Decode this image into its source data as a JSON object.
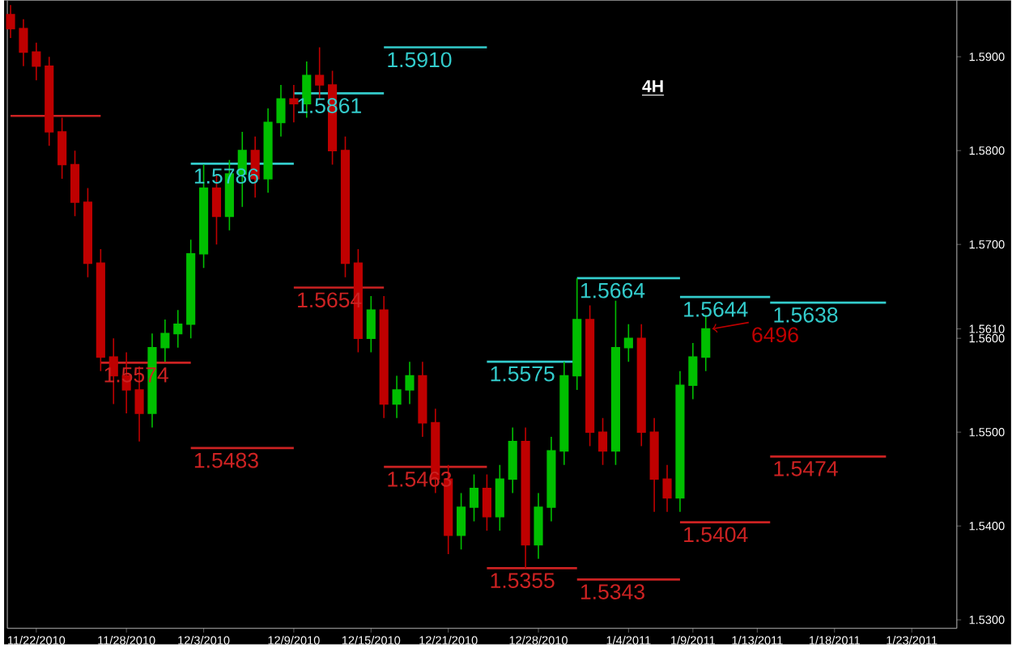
{
  "chart_data": {
    "type": "candlestick",
    "title": "4H",
    "categories": [
      null,
      null,
      "11/22/2010",
      null,
      null,
      null,
      null,
      null,
      null,
      "11/28/2010",
      null,
      null,
      null,
      null,
      null,
      "12/3/2010",
      null,
      null,
      null,
      null,
      null,
      null,
      "12/9/2010",
      null,
      null,
      null,
      null,
      null,
      "12/15/2010",
      null,
      null,
      null,
      null,
      null,
      "12/21/2010",
      null,
      null,
      null,
      null,
      null,
      null,
      "12/28/2010",
      null,
      null,
      null,
      null,
      null,
      null,
      "1/4/2011",
      null,
      null,
      null,
      null,
      "1/9/2011",
      null,
      null,
      null,
      null,
      "1/13/2011",
      null,
      null,
      null,
      null,
      null,
      "1/18/2011",
      null,
      null,
      null,
      null,
      null,
      "1/23/2011",
      null,
      null,
      null
    ],
    "ohlc": [
      [
        1.5945,
        1.5955,
        1.592,
        1.593
      ],
      [
        1.593,
        1.594,
        1.589,
        1.5905
      ],
      [
        1.5905,
        1.5915,
        1.5875,
        1.589
      ],
      [
        1.589,
        1.59,
        1.5805,
        1.582
      ],
      [
        1.582,
        1.5835,
        1.577,
        1.5785
      ],
      [
        1.5785,
        1.58,
        1.573,
        1.5745
      ],
      [
        1.5745,
        1.576,
        1.5665,
        1.568
      ],
      [
        1.568,
        1.5695,
        1.5565,
        1.558
      ],
      [
        1.558,
        1.56,
        1.553,
        1.556
      ],
      [
        1.556,
        1.5585,
        1.552,
        1.5545
      ],
      [
        1.5545,
        1.557,
        1.549,
        1.552
      ],
      [
        1.552,
        1.5605,
        1.5505,
        1.559
      ],
      [
        1.559,
        1.562,
        1.5575,
        1.5605
      ],
      [
        1.5605,
        1.563,
        1.559,
        1.5615
      ],
      [
        1.5615,
        1.5705,
        1.56,
        1.569
      ],
      [
        1.569,
        1.5785,
        1.5675,
        1.576
      ],
      [
        1.576,
        1.5775,
        1.57,
        1.573
      ],
      [
        1.573,
        1.579,
        1.5715,
        1.5775
      ],
      [
        1.5775,
        1.582,
        1.574,
        1.58
      ],
      [
        1.58,
        1.5815,
        1.575,
        1.577
      ],
      [
        1.577,
        1.5845,
        1.5755,
        1.583
      ],
      [
        1.583,
        1.587,
        1.5815,
        1.5855
      ],
      [
        1.5855,
        1.587,
        1.583,
        1.585
      ],
      [
        1.585,
        1.5895,
        1.5835,
        1.588
      ],
      [
        1.588,
        1.591,
        1.5855,
        1.587
      ],
      [
        1.587,
        1.5885,
        1.5785,
        1.58
      ],
      [
        1.58,
        1.5815,
        1.5665,
        1.568
      ],
      [
        1.568,
        1.5695,
        1.5585,
        1.56
      ],
      [
        1.56,
        1.5645,
        1.5585,
        1.563
      ],
      [
        1.563,
        1.5645,
        1.5515,
        1.553
      ],
      [
        1.553,
        1.556,
        1.5515,
        1.5545
      ],
      [
        1.5545,
        1.5575,
        1.553,
        1.556
      ],
      [
        1.556,
        1.5575,
        1.5495,
        1.551
      ],
      [
        1.551,
        1.5525,
        1.5435,
        1.545
      ],
      [
        1.545,
        1.5465,
        1.537,
        1.539
      ],
      [
        1.539,
        1.5435,
        1.5375,
        1.542
      ],
      [
        1.542,
        1.5455,
        1.5405,
        1.544
      ],
      [
        1.544,
        1.5455,
        1.5395,
        1.541
      ],
      [
        1.541,
        1.5465,
        1.5395,
        1.545
      ],
      [
        1.545,
        1.5505,
        1.5435,
        1.549
      ],
      [
        1.549,
        1.5505,
        1.5355,
        1.538
      ],
      [
        1.538,
        1.5435,
        1.5365,
        1.542
      ],
      [
        1.542,
        1.5495,
        1.5405,
        1.548
      ],
      [
        1.548,
        1.5575,
        1.5465,
        1.556
      ],
      [
        1.556,
        1.5664,
        1.5545,
        1.562
      ],
      [
        1.562,
        1.5635,
        1.5485,
        1.55
      ],
      [
        1.55,
        1.5515,
        1.5465,
        1.548
      ],
      [
        1.548,
        1.564,
        1.5465,
        1.559
      ],
      [
        1.559,
        1.5615,
        1.5575,
        1.56
      ],
      [
        1.56,
        1.5615,
        1.5485,
        1.55
      ],
      [
        1.55,
        1.5515,
        1.5415,
        1.545
      ],
      [
        1.545,
        1.5465,
        1.5415,
        1.543
      ],
      [
        1.543,
        1.5565,
        1.5415,
        1.555
      ],
      [
        1.555,
        1.5595,
        1.5535,
        1.558
      ],
      [
        1.558,
        1.5625,
        1.5565,
        1.561
      ],
      null,
      null,
      null,
      null,
      null,
      null,
      null,
      null,
      null,
      null,
      null,
      null,
      null,
      null,
      null,
      null,
      null,
      null,
      null
    ],
    "series": [
      {
        "type": "line",
        "color": "#cc2222",
        "values": [
          1.5837,
          1.5837,
          1.5837,
          1.5837,
          1.5837,
          1.5837,
          1.5837,
          1.5837,
          null,
          null,
          null,
          null,
          null,
          null,
          null,
          null,
          null,
          null,
          null,
          null,
          null,
          null,
          null,
          null,
          null,
          null,
          null,
          null,
          null,
          null,
          null,
          null,
          null,
          null,
          null,
          null,
          null,
          null,
          null,
          null,
          null,
          null,
          null,
          null,
          null,
          null,
          null,
          null,
          null,
          null,
          null,
          null,
          null,
          null,
          null,
          null,
          null,
          null,
          null,
          null,
          null,
          null,
          null,
          null,
          null,
          null,
          null,
          null,
          null,
          null,
          null,
          null,
          null,
          null
        ]
      },
      {
        "type": "line",
        "color": "#33cccc",
        "values": [
          null,
          null,
          null,
          null,
          null,
          null,
          null,
          null,
          null,
          null,
          null,
          null,
          null,
          null,
          1.5786,
          1.5786,
          1.5786,
          1.5786,
          1.5786,
          1.5786,
          1.5786,
          1.5786,
          1.5786,
          null,
          null,
          null,
          null,
          null,
          null,
          null,
          null,
          null,
          null,
          null,
          null,
          null,
          null,
          null,
          null,
          null,
          null,
          null,
          null,
          null,
          null,
          null,
          null,
          null,
          null,
          null,
          null,
          null,
          null,
          null,
          null,
          null,
          null,
          null,
          null,
          null,
          null,
          null,
          null,
          null,
          null,
          null,
          null,
          null,
          null,
          null,
          null,
          null,
          null,
          null
        ]
      },
      {
        "type": "line",
        "color": "#33cccc",
        "values": [
          null,
          null,
          null,
          null,
          null,
          null,
          null,
          null,
          null,
          null,
          null,
          null,
          null,
          null,
          null,
          null,
          null,
          null,
          null,
          null,
          null,
          null,
          1.5861,
          1.5861,
          1.5861,
          1.5861,
          1.5861,
          1.5861,
          1.5861,
          1.5861,
          null,
          null,
          null,
          null,
          null,
          null,
          null,
          null,
          null,
          null,
          null,
          null,
          null,
          null,
          null,
          null,
          null,
          null,
          null,
          null,
          null,
          null,
          null,
          null,
          null,
          null,
          null,
          null,
          null,
          null,
          null,
          null,
          null,
          null,
          null,
          null,
          null,
          null,
          null,
          null,
          null,
          null,
          null,
          null
        ]
      },
      {
        "type": "line",
        "color": "#33cccc",
        "values": [
          null,
          null,
          null,
          null,
          null,
          null,
          null,
          null,
          null,
          null,
          null,
          null,
          null,
          null,
          null,
          null,
          null,
          null,
          null,
          null,
          null,
          null,
          null,
          null,
          null,
          null,
          null,
          null,
          null,
          1.591,
          1.591,
          1.591,
          1.591,
          1.591,
          1.591,
          1.591,
          1.591,
          1.591,
          null,
          null,
          null,
          null,
          null,
          null,
          null,
          null,
          null,
          null,
          null,
          null,
          null,
          null,
          null,
          null,
          null,
          null,
          null,
          null,
          null,
          null,
          null,
          null,
          null,
          null,
          null,
          null,
          null,
          null,
          null,
          null,
          null,
          null,
          null,
          null
        ]
      },
      {
        "type": "line",
        "color": "#cc2222",
        "values": [
          null,
          null,
          null,
          null,
          null,
          null,
          null,
          null,
          null,
          null,
          null,
          null,
          null,
          null,
          null,
          null,
          null,
          null,
          null,
          null,
          null,
          null,
          1.5654,
          1.5654,
          1.5654,
          1.5654,
          1.5654,
          1.5654,
          1.5654,
          1.5654,
          null,
          null,
          null,
          null,
          null,
          null,
          null,
          null,
          null,
          null,
          null,
          null,
          null,
          null,
          null,
          null,
          null,
          null,
          null,
          null,
          null,
          null,
          null,
          null,
          null,
          null,
          null,
          null,
          null,
          null,
          null,
          null,
          null,
          null,
          null,
          null,
          null,
          null,
          null,
          null,
          null,
          null,
          null,
          null
        ]
      },
      {
        "type": "line",
        "color": "#cc2222",
        "values": [
          null,
          null,
          null,
          null,
          null,
          null,
          null,
          1.5574,
          1.5574,
          1.5574,
          1.5574,
          1.5574,
          1.5574,
          1.5574,
          1.5574,
          null,
          null,
          null,
          null,
          null,
          null,
          null,
          null,
          null,
          null,
          null,
          null,
          null,
          null,
          null,
          null,
          null,
          null,
          null,
          null,
          null,
          null,
          null,
          null,
          null,
          null,
          null,
          null,
          null,
          null,
          null,
          null,
          null,
          null,
          null,
          null,
          null,
          null,
          null,
          null,
          null,
          null,
          null,
          null,
          null,
          null,
          null,
          null,
          null,
          null,
          null,
          null,
          null,
          null,
          null,
          null,
          null,
          null,
          null
        ]
      },
      {
        "type": "line",
        "color": "#cc2222",
        "values": [
          null,
          null,
          null,
          null,
          null,
          null,
          null,
          null,
          null,
          null,
          null,
          null,
          null,
          null,
          1.5483,
          1.5483,
          1.5483,
          1.5483,
          1.5483,
          1.5483,
          1.5483,
          1.5483,
          1.5483,
          null,
          null,
          null,
          null,
          null,
          null,
          null,
          null,
          null,
          null,
          null,
          null,
          null,
          null,
          null,
          null,
          null,
          null,
          null,
          null,
          null,
          null,
          null,
          null,
          null,
          null,
          null,
          null,
          null,
          null,
          null,
          null,
          null,
          null,
          null,
          null,
          null,
          null,
          null,
          null,
          null,
          null,
          null,
          null,
          null,
          null,
          null,
          null,
          null,
          null,
          null
        ]
      },
      {
        "type": "line",
        "color": "#cc2222",
        "values": [
          null,
          null,
          null,
          null,
          null,
          null,
          null,
          null,
          null,
          null,
          null,
          null,
          null,
          null,
          null,
          null,
          null,
          null,
          null,
          null,
          null,
          null,
          null,
          null,
          null,
          null,
          null,
          null,
          null,
          1.5463,
          1.5463,
          1.5463,
          1.5463,
          1.5463,
          1.5463,
          1.5463,
          1.5463,
          1.5463,
          null,
          null,
          null,
          null,
          null,
          null,
          null,
          null,
          null,
          null,
          null,
          null,
          null,
          null,
          null,
          null,
          null,
          null,
          null,
          null,
          null,
          null,
          null,
          null,
          null,
          null,
          null,
          null,
          null,
          null,
          null,
          null,
          null,
          null,
          null,
          null
        ]
      },
      {
        "type": "line",
        "color": "#33cccc",
        "values": [
          null,
          null,
          null,
          null,
          null,
          null,
          null,
          null,
          null,
          null,
          null,
          null,
          null,
          null,
          null,
          null,
          null,
          null,
          null,
          null,
          null,
          null,
          null,
          null,
          null,
          null,
          null,
          null,
          null,
          null,
          null,
          null,
          null,
          null,
          null,
          null,
          null,
          1.5575,
          1.5575,
          1.5575,
          1.5575,
          1.5575,
          1.5575,
          1.5575,
          1.5575,
          null,
          null,
          null,
          null,
          null,
          null,
          null,
          null,
          null,
          null,
          null,
          null,
          null,
          null,
          null,
          null,
          null,
          null,
          null,
          null,
          null,
          null,
          null,
          null,
          null,
          null,
          null,
          null,
          null
        ]
      },
      {
        "type": "line",
        "color": "#cc2222",
        "values": [
          null,
          null,
          null,
          null,
          null,
          null,
          null,
          null,
          null,
          null,
          null,
          null,
          null,
          null,
          null,
          null,
          null,
          null,
          null,
          null,
          null,
          null,
          null,
          null,
          null,
          null,
          null,
          null,
          null,
          null,
          null,
          null,
          null,
          null,
          null,
          null,
          null,
          1.5355,
          1.5355,
          1.5355,
          1.5355,
          1.5355,
          1.5355,
          1.5355,
          1.5355,
          null,
          null,
          null,
          null,
          null,
          null,
          null,
          null,
          null,
          null,
          null,
          null,
          null,
          null,
          null,
          null,
          null,
          null,
          null,
          null,
          null,
          null,
          null,
          null,
          null,
          null,
          null,
          null,
          null
        ]
      },
      {
        "type": "line",
        "color": "#cc2222",
        "values": [
          null,
          null,
          null,
          null,
          null,
          null,
          null,
          null,
          null,
          null,
          null,
          null,
          null,
          null,
          null,
          null,
          null,
          null,
          null,
          null,
          null,
          null,
          null,
          null,
          null,
          null,
          null,
          null,
          null,
          null,
          null,
          null,
          null,
          null,
          null,
          null,
          null,
          null,
          null,
          null,
          null,
          null,
          null,
          null,
          1.5343,
          1.5343,
          1.5343,
          1.5343,
          1.5343,
          1.5343,
          1.5343,
          1.5343,
          1.5343,
          null,
          null,
          null,
          null,
          null,
          null,
          null,
          null,
          null,
          null,
          null,
          null,
          null,
          null,
          null,
          null,
          null,
          null,
          null,
          null,
          null
        ]
      },
      {
        "type": "line",
        "color": "#33cccc",
        "values": [
          null,
          null,
          null,
          null,
          null,
          null,
          null,
          null,
          null,
          null,
          null,
          null,
          null,
          null,
          null,
          null,
          null,
          null,
          null,
          null,
          null,
          null,
          null,
          null,
          null,
          null,
          null,
          null,
          null,
          null,
          null,
          null,
          null,
          null,
          null,
          null,
          null,
          null,
          null,
          null,
          null,
          null,
          null,
          null,
          1.5664,
          1.5664,
          1.5664,
          1.5664,
          1.5664,
          1.5664,
          1.5664,
          1.5664,
          1.5664,
          null,
          null,
          null,
          null,
          null,
          null,
          null,
          null,
          null,
          null,
          null,
          null,
          null,
          null,
          null,
          null,
          null,
          null,
          null,
          null,
          null
        ]
      },
      {
        "type": "line",
        "color": "#33cccc",
        "values": [
          null,
          null,
          null,
          null,
          null,
          null,
          null,
          null,
          null,
          null,
          null,
          null,
          null,
          null,
          null,
          null,
          null,
          null,
          null,
          null,
          null,
          null,
          null,
          null,
          null,
          null,
          null,
          null,
          null,
          null,
          null,
          null,
          null,
          null,
          null,
          null,
          null,
          null,
          null,
          null,
          null,
          null,
          null,
          null,
          null,
          null,
          null,
          null,
          null,
          null,
          null,
          null,
          1.5644,
          1.5644,
          1.5644,
          1.5644,
          1.5644,
          1.5644,
          1.5644,
          1.5644,
          null,
          null,
          null,
          null,
          null,
          null,
          null,
          null,
          null,
          null,
          null,
          null,
          null,
          null
        ]
      },
      {
        "type": "line",
        "color": "#33cccc",
        "values": [
          null,
          null,
          null,
          null,
          null,
          null,
          null,
          null,
          null,
          null,
          null,
          null,
          null,
          null,
          null,
          null,
          null,
          null,
          null,
          null,
          null,
          null,
          null,
          null,
          null,
          null,
          null,
          null,
          null,
          null,
          null,
          null,
          null,
          null,
          null,
          null,
          null,
          null,
          null,
          null,
          null,
          null,
          null,
          null,
          null,
          null,
          null,
          null,
          null,
          null,
          null,
          null,
          null,
          null,
          null,
          null,
          null,
          null,
          null,
          1.5638,
          1.5638,
          1.5638,
          1.5638,
          1.5638,
          1.5638,
          1.5638,
          1.5638,
          1.5638,
          1.5638,
          null,
          null,
          null,
          null,
          null
        ]
      },
      {
        "type": "line",
        "color": "#cc2222",
        "values": [
          null,
          null,
          null,
          null,
          null,
          null,
          null,
          null,
          null,
          null,
          null,
          null,
          null,
          null,
          null,
          null,
          null,
          null,
          null,
          null,
          null,
          null,
          null,
          null,
          null,
          null,
          null,
          null,
          null,
          null,
          null,
          null,
          null,
          null,
          null,
          null,
          null,
          null,
          null,
          null,
          null,
          null,
          null,
          null,
          null,
          null,
          null,
          null,
          null,
          null,
          null,
          null,
          1.5404,
          1.5404,
          1.5404,
          1.5404,
          1.5404,
          1.5404,
          1.5404,
          1.5404,
          null,
          null,
          null,
          null,
          null,
          null,
          null,
          null,
          null,
          null,
          null,
          null,
          null,
          null
        ]
      },
      {
        "type": "line",
        "color": "#cc2222",
        "values": [
          null,
          null,
          null,
          null,
          null,
          null,
          null,
          null,
          null,
          null,
          null,
          null,
          null,
          null,
          null,
          null,
          null,
          null,
          null,
          null,
          null,
          null,
          null,
          null,
          null,
          null,
          null,
          null,
          null,
          null,
          null,
          null,
          null,
          null,
          null,
          null,
          null,
          null,
          null,
          null,
          null,
          null,
          null,
          null,
          null,
          null,
          null,
          null,
          null,
          null,
          null,
          null,
          null,
          null,
          null,
          null,
          null,
          null,
          null,
          1.5474,
          1.5474,
          1.5474,
          1.5474,
          1.5474,
          1.5474,
          1.5474,
          1.5474,
          1.5474,
          1.5474,
          null,
          null,
          null,
          null,
          null
        ]
      }
    ],
    "annotations": [
      {
        "text": "1.5786",
        "y": 1.5786
      },
      {
        "text": "1.5861",
        "y": 1.5861
      },
      {
        "text": "1.5910",
        "y": 1.591
      },
      {
        "text": "1.5654",
        "y": 1.5654
      },
      {
        "text": "1.5574",
        "y": 1.5574
      },
      {
        "text": "1.5483",
        "y": 1.5483
      },
      {
        "text": "1.5463",
        "y": 1.5463
      },
      {
        "text": "1.5575",
        "y": 1.5575
      },
      {
        "text": "1.5355",
        "y": 1.5355
      },
      {
        "text": "1.5343",
        "y": 1.5343
      },
      {
        "text": "1.5664",
        "y": 1.5664
      },
      {
        "text": "1.5644",
        "y": 1.5644
      },
      {
        "text": "1.5638",
        "y": 1.5638
      },
      {
        "text": "1.5404",
        "y": 1.5404
      },
      {
        "text": "1.5474",
        "y": 1.5474
      },
      "6496"
    ],
    "ylim": [
      1.5291,
      1.596
    ],
    "yticks": [
      {
        "value": 1.53,
        "label": "1.5300"
      },
      {
        "value": 1.54,
        "label": "1.5400"
      },
      {
        "value": 1.55,
        "label": "1.5500"
      },
      {
        "value": 1.56,
        "label": "1.5600"
      },
      {
        "value": 1.561,
        "label": "1.5610"
      },
      {
        "value": 1.57,
        "label": "1.5700"
      },
      {
        "value": 1.58,
        "label": "1.5800"
      },
      {
        "value": 1.59,
        "label": "1.5900"
      }
    ],
    "grid": false
  }
}
